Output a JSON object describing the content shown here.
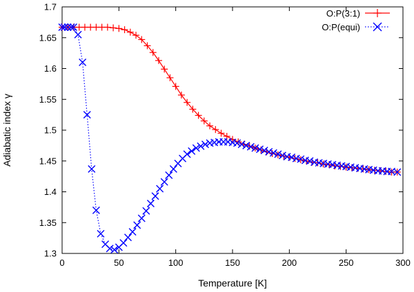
{
  "chart_data": {
    "type": "line",
    "title": "",
    "xlabel": "Temperature [K]",
    "ylabel": "Adiabatic index γ",
    "xlim": [
      0,
      300
    ],
    "ylim": [
      1.3,
      1.7
    ],
    "xticks": [
      0,
      50,
      100,
      150,
      200,
      250,
      300
    ],
    "xtick_labels": [
      "0",
      "50",
      "100",
      "150",
      "200",
      "250",
      "300"
    ],
    "yticks": [
      1.3,
      1.35,
      1.4,
      1.45,
      1.5,
      1.55,
      1.6,
      1.65,
      1.7
    ],
    "ytick_labels": [
      "1.3",
      "1.35",
      "1.4",
      "1.45",
      "1.5",
      "1.55",
      "1.6",
      "1.65",
      "1.7"
    ],
    "grid": false,
    "legend": "top-right",
    "series": [
      {
        "name": "O:P(3:1)",
        "color": "#ff0000",
        "line": "solid",
        "marker": "plus",
        "x": [
          0,
          5,
          10,
          15,
          20,
          25,
          30,
          35,
          40,
          45,
          50,
          55,
          60,
          65,
          70,
          75,
          80,
          85,
          90,
          95,
          100,
          105,
          110,
          115,
          120,
          125,
          130,
          135,
          140,
          145,
          150,
          155,
          160,
          165,
          170,
          175,
          180,
          185,
          190,
          195,
          200,
          205,
          210,
          215,
          220,
          225,
          230,
          235,
          240,
          245,
          250,
          255,
          260,
          265,
          270,
          275,
          280,
          285,
          290,
          295
        ],
        "y": [
          1.667,
          1.667,
          1.667,
          1.667,
          1.667,
          1.667,
          1.667,
          1.667,
          1.667,
          1.666,
          1.665,
          1.663,
          1.659,
          1.654,
          1.647,
          1.637,
          1.626,
          1.613,
          1.599,
          1.585,
          1.571,
          1.557,
          1.545,
          1.534,
          1.524,
          1.515,
          1.507,
          1.501,
          1.495,
          1.49,
          1.485,
          1.481,
          1.477,
          1.474,
          1.471,
          1.468,
          1.465,
          1.462,
          1.46,
          1.458,
          1.456,
          1.454,
          1.452,
          1.45,
          1.448,
          1.447,
          1.445,
          1.444,
          1.442,
          1.441,
          1.44,
          1.439,
          1.438,
          1.437,
          1.436,
          1.435,
          1.434,
          1.433,
          1.432,
          1.432
        ]
      },
      {
        "name": "O:P(equi)",
        "color": "#0000ff",
        "line": "dotted",
        "marker": "cross",
        "x": [
          0,
          2,
          5,
          8,
          10,
          14,
          18,
          22,
          26,
          30,
          34,
          38,
          42,
          46,
          50,
          54,
          58,
          62,
          66,
          70,
          74,
          78,
          82,
          86,
          90,
          94,
          98,
          102,
          106,
          110,
          114,
          118,
          122,
          126,
          130,
          134,
          138,
          142,
          146,
          150,
          154,
          158,
          162,
          166,
          170,
          174,
          178,
          182,
          186,
          190,
          194,
          198,
          202,
          206,
          210,
          214,
          218,
          222,
          226,
          230,
          234,
          238,
          242,
          246,
          250,
          254,
          258,
          262,
          266,
          270,
          274,
          278,
          282,
          286,
          290,
          295
        ],
        "y": [
          1.667,
          1.667,
          1.667,
          1.667,
          1.667,
          1.655,
          1.61,
          1.525,
          1.437,
          1.37,
          1.332,
          1.315,
          1.308,
          1.306,
          1.31,
          1.317,
          1.326,
          1.335,
          1.346,
          1.357,
          1.369,
          1.381,
          1.393,
          1.405,
          1.416,
          1.427,
          1.437,
          1.446,
          1.454,
          1.461,
          1.466,
          1.471,
          1.474,
          1.477,
          1.479,
          1.48,
          1.481,
          1.481,
          1.481,
          1.48,
          1.479,
          1.477,
          1.475,
          1.473,
          1.471,
          1.469,
          1.467,
          1.465,
          1.463,
          1.461,
          1.459,
          1.457,
          1.456,
          1.454,
          1.453,
          1.451,
          1.45,
          1.448,
          1.447,
          1.446,
          1.445,
          1.444,
          1.443,
          1.442,
          1.441,
          1.44,
          1.439,
          1.438,
          1.437,
          1.436,
          1.435,
          1.434,
          1.434,
          1.433,
          1.433,
          1.432
        ]
      }
    ]
  }
}
